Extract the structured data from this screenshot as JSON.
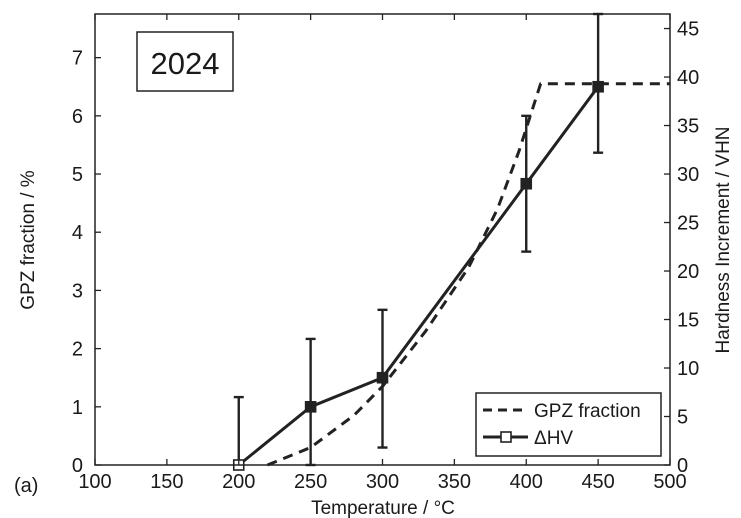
{
  "chart_data": {
    "type": "line",
    "panel_label": "(a)",
    "annotation": "2024",
    "xlabel": "Temperature / °C",
    "ylabel_left": "GPZ fraction / %",
    "ylabel_right": "Hardness Increment / VHN",
    "xlim": [
      100,
      500
    ],
    "ylim_left": [
      0,
      7.75
    ],
    "ylim_right": [
      0,
      46.5
    ],
    "x_ticks": [
      100,
      150,
      200,
      250,
      300,
      350,
      400,
      450,
      500
    ],
    "y_left_ticks": [
      0,
      1,
      2,
      3,
      4,
      5,
      6,
      7
    ],
    "y_right_ticks": [
      0,
      5,
      10,
      15,
      20,
      25,
      30,
      35,
      40,
      45
    ],
    "grid": false,
    "legend_position": "bottom-right",
    "series": [
      {
        "name": "GPZ fraction",
        "axis": "left",
        "style": "dashed",
        "color": "#222222",
        "x": [
          220,
          250,
          280,
          300,
          330,
          360,
          380,
          395,
          410,
          450,
          500
        ],
        "y": [
          0,
          0.3,
          0.85,
          1.35,
          2.3,
          3.4,
          4.4,
          5.4,
          6.55,
          6.55,
          6.55
        ]
      },
      {
        "name": "ΔHV",
        "axis": "right",
        "style": "solid",
        "marker": "square",
        "color": "#222222",
        "x": [
          200,
          250,
          300,
          400,
          450
        ],
        "y": [
          0,
          6,
          9,
          29,
          39
        ],
        "err_low": [
          0,
          0,
          1.8,
          22,
          32.2
        ],
        "err_high": [
          7,
          13,
          16,
          36,
          46.5
        ]
      }
    ]
  }
}
